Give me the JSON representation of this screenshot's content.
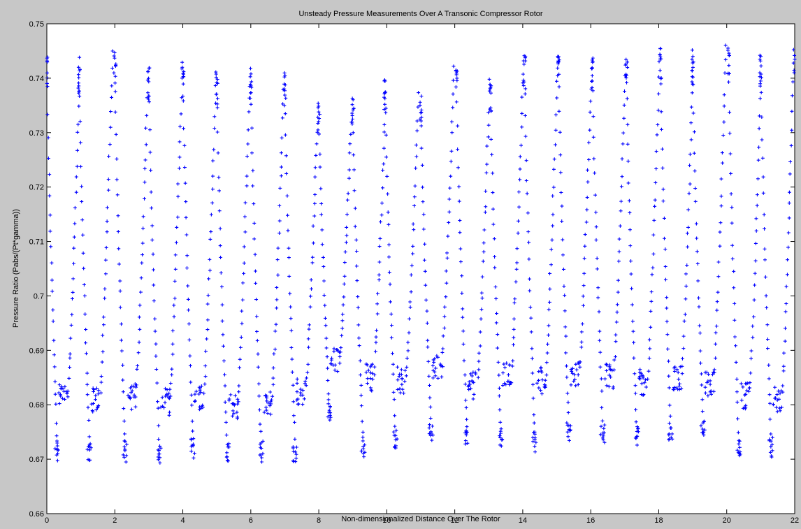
{
  "chart_data": {
    "type": "scatter",
    "title": "Unsteady Pressure Measurements Over A Transonic Compressor Rotor",
    "xlabel": "Non-dimensionalized Distance Over The Rotor",
    "ylabel": "Pressure Ratio (Pabs/(Pt*gamma))",
    "xlim": [
      0,
      22
    ],
    "ylim": [
      0.66,
      0.75
    ],
    "xticks": [
      0,
      2,
      4,
      6,
      8,
      10,
      12,
      14,
      16,
      18,
      20,
      22
    ],
    "yticks": [
      0.66,
      0.67,
      0.68,
      0.69,
      0.7,
      0.71,
      0.72,
      0.73,
      0.74,
      0.75
    ],
    "xtick_labels": [
      "0",
      "2",
      "4",
      "6",
      "8",
      "10",
      "12",
      "14",
      "16",
      "18",
      "20",
      "22"
    ],
    "ytick_labels": [
      "0.66",
      "0.67",
      "0.68",
      "0.69",
      "0.7",
      "0.71",
      "0.72",
      "0.73",
      "0.74",
      "0.75"
    ],
    "grid": false,
    "marker": "+",
    "marker_color": "#0000ff",
    "cycle": {
      "period": 1.0,
      "high_step_x": [
        0.0,
        0.95,
        2.0,
        3.0,
        4.0,
        5.0,
        6.0,
        7.0,
        8.0,
        9.0,
        9.95,
        11.0,
        12.05,
        13.05,
        14.05,
        15.05,
        16.05,
        17.05,
        18.05,
        19.0,
        20.05,
        21.0,
        22.0
      ],
      "peak_y": [
        0.745,
        0.7435,
        0.745,
        0.742,
        0.7425,
        0.741,
        0.742,
        0.7405,
        0.7355,
        0.7365,
        0.7395,
        0.737,
        0.742,
        0.7395,
        0.744,
        0.7445,
        0.744,
        0.743,
        0.7455,
        0.745,
        0.746,
        0.7445,
        0.745
      ],
      "min_y": [
        0.67,
        0.6695,
        0.67,
        0.6695,
        0.6705,
        0.6695,
        0.67,
        0.6695,
        0.677,
        0.671,
        0.672,
        0.6735,
        0.6725,
        0.6725,
        0.6715,
        0.6735,
        0.673,
        0.6725,
        0.6735,
        0.674,
        0.6705,
        0.6705
      ],
      "plateau_y": [
        0.6815,
        0.681,
        0.6815,
        0.6805,
        0.6815,
        0.6795,
        0.6805,
        0.6825,
        0.6885,
        0.685,
        0.6845,
        0.6865,
        0.6835,
        0.686,
        0.6845,
        0.6855,
        0.685,
        0.684,
        0.6845,
        0.684,
        0.6815,
        0.681
      ]
    }
  }
}
